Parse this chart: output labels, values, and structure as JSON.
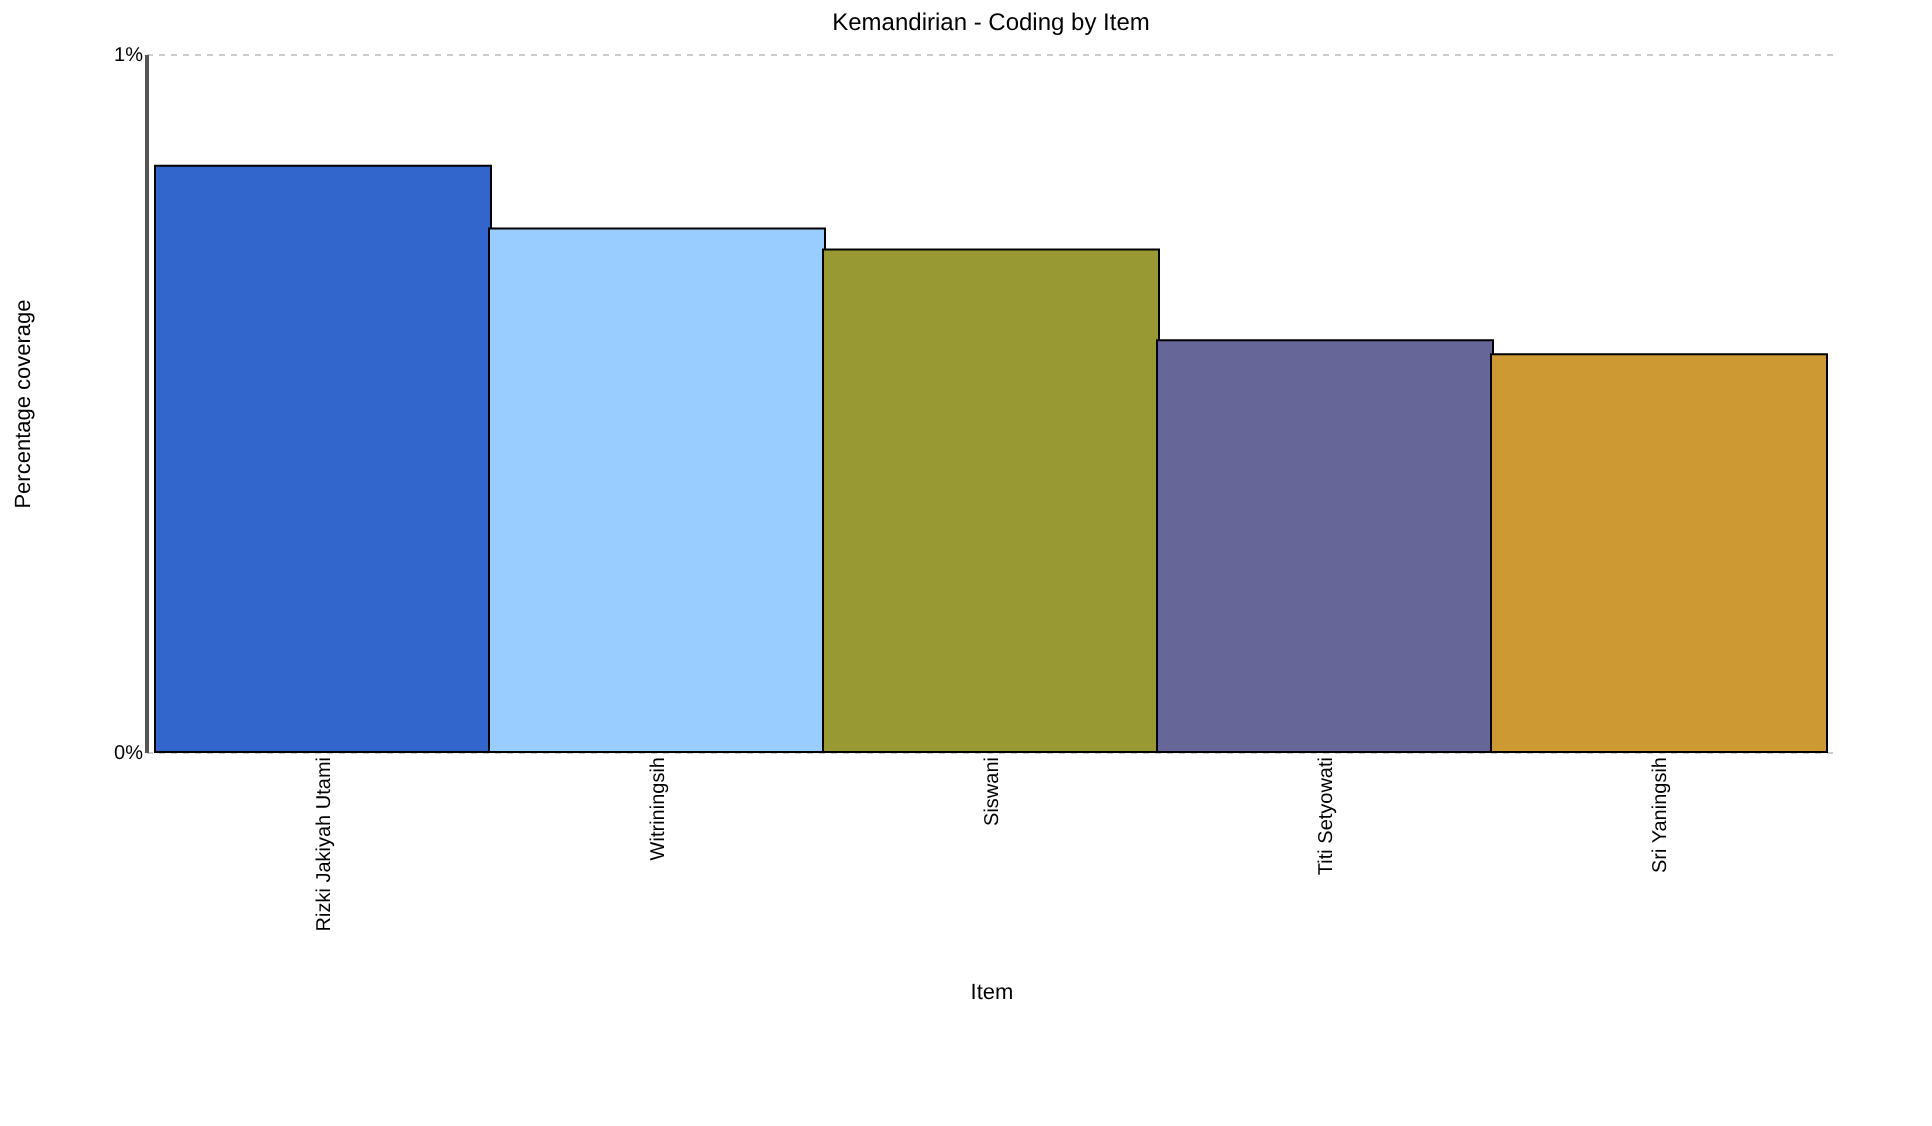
{
  "chart_data": {
    "type": "bar",
    "title": "Kemandirian - Coding by Item",
    "xlabel": "Item",
    "ylabel": "Percentage coverage",
    "categories": [
      "Rizki Jakiyah Utami",
      "Witriningsih",
      "Siswani",
      "Titi Setyowati",
      "Sri Yaningsih"
    ],
    "values": [
      0.84,
      0.75,
      0.72,
      0.59,
      0.57
    ],
    "colors": [
      "#3366cc",
      "#99ccff",
      "#999933",
      "#666699",
      "#cc9933"
    ],
    "ylim": [
      0,
      1
    ],
    "yticks": [
      {
        "value": 0,
        "label": "0%"
      },
      {
        "value": 1,
        "label": "1%"
      }
    ],
    "grid": "y"
  }
}
